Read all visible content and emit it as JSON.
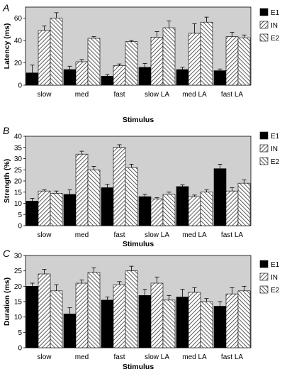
{
  "chart_data": [
    {
      "panel": "A",
      "type": "bar",
      "ylabel": "Latency (ms)",
      "xlabel": "Stimulus",
      "ylim": [
        0,
        70
      ],
      "yticks": [
        0,
        20,
        40,
        60
      ],
      "categories": [
        "slow",
        "med",
        "fast",
        "slow LA",
        "med LA",
        "fast LA"
      ],
      "series": [
        {
          "name": "E1",
          "values": [
            11,
            14,
            8,
            16,
            14,
            13
          ],
          "errors": [
            7,
            3,
            1.5,
            3.5,
            2,
            1.5
          ]
        },
        {
          "name": "IN",
          "values": [
            49,
            21,
            17.5,
            43,
            46.5,
            43.5
          ],
          "errors": [
            4,
            2,
            1.5,
            5,
            8.5,
            4
          ]
        },
        {
          "name": "E2",
          "values": [
            60,
            42,
            39,
            51.5,
            56.5,
            42.5
          ],
          "errors": [
            5,
            1.5,
            1,
            6,
            4.5,
            2.5
          ]
        }
      ],
      "legend": "top-right"
    },
    {
      "panel": "B",
      "type": "bar",
      "ylabel": "Strength (%)",
      "xlabel": "Stimulus",
      "ylim": [
        0,
        40
      ],
      "yticks": [
        0,
        5,
        10,
        15,
        20,
        25,
        30,
        35,
        40
      ],
      "categories": [
        "slow",
        "med",
        "fast",
        "slow LA",
        "med LA",
        "fast LA"
      ],
      "series": [
        {
          "name": "E1",
          "values": [
            11,
            14,
            17,
            13,
            17.5,
            25.5
          ],
          "errors": [
            1.2,
            2,
            1.5,
            1,
            0.8,
            2
          ]
        },
        {
          "name": "IN",
          "values": [
            15.5,
            32,
            35,
            12,
            13,
            15.5
          ],
          "errors": [
            0.5,
            1.3,
            1.2,
            0.5,
            0.7,
            1.5
          ]
        },
        {
          "name": "E2",
          "values": [
            14.5,
            25,
            26,
            14,
            15,
            19
          ],
          "errors": [
            1,
            1.5,
            1.5,
            1,
            1,
            1.5
          ]
        }
      ],
      "legend": "right"
    },
    {
      "panel": "C",
      "type": "bar",
      "ylabel": "Duration (ms)",
      "xlabel": "Stimulus",
      "ylim": [
        0,
        30
      ],
      "yticks": [
        0,
        5,
        10,
        15,
        20,
        25,
        30
      ],
      "categories": [
        "slow",
        "med",
        "fast",
        "slow LA",
        "med LA",
        "fast LA"
      ],
      "series": [
        {
          "name": "E1",
          "values": [
            20,
            11,
            15.5,
            17,
            16.5,
            13.5
          ],
          "errors": [
            1,
            2,
            1,
            2,
            2.5,
            1.5
          ]
        },
        {
          "name": "IN",
          "values": [
            24,
            21,
            20.5,
            21,
            18,
            17.5
          ],
          "errors": [
            1.5,
            1,
            1,
            2,
            1.5,
            2
          ]
        },
        {
          "name": "E2",
          "values": [
            18.5,
            24.5,
            25,
            15.5,
            15,
            18.5
          ],
          "errors": [
            2,
            1.5,
            1.5,
            1.5,
            1,
            1.5
          ]
        }
      ],
      "legend": "right"
    }
  ],
  "colors": {
    "E1": "#000000",
    "plot_bg": "#d0d0d0",
    "hatch_line": "#333333"
  }
}
